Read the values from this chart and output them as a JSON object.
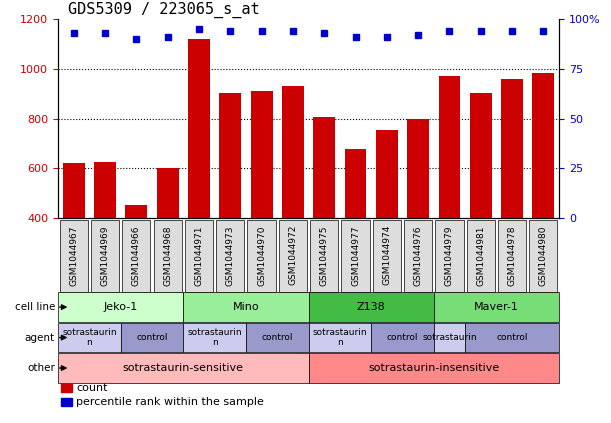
{
  "title": "GDS5309 / 223065_s_at",
  "samples": [
    "GSM1044967",
    "GSM1044969",
    "GSM1044966",
    "GSM1044968",
    "GSM1044971",
    "GSM1044973",
    "GSM1044970",
    "GSM1044972",
    "GSM1044975",
    "GSM1044977",
    "GSM1044974",
    "GSM1044976",
    "GSM1044979",
    "GSM1044981",
    "GSM1044978",
    "GSM1044980"
  ],
  "counts": [
    620,
    625,
    455,
    600,
    1120,
    905,
    910,
    930,
    805,
    680,
    755,
    800,
    970,
    905,
    960,
    985
  ],
  "percentile_ranks": [
    93,
    93,
    90,
    91,
    95,
    94,
    94,
    94,
    93,
    91,
    91,
    92,
    94,
    94,
    94,
    94
  ],
  "ylim_left": [
    400,
    1200
  ],
  "ylim_right": [
    0,
    100
  ],
  "yticks_left": [
    400,
    600,
    800,
    1000,
    1200
  ],
  "yticks_right": [
    0,
    25,
    50,
    75,
    100
  ],
  "bar_color": "#cc0000",
  "dot_color": "#0000cc",
  "cell_line_row": {
    "label": "cell line",
    "groups": [
      {
        "text": "Jeko-1",
        "start": 0,
        "end": 4,
        "color": "#ccffcc"
      },
      {
        "text": "Mino",
        "start": 4,
        "end": 8,
        "color": "#99ee99"
      },
      {
        "text": "Z138",
        "start": 8,
        "end": 12,
        "color": "#44bb44"
      },
      {
        "text": "Maver-1",
        "start": 12,
        "end": 16,
        "color": "#77dd77"
      }
    ]
  },
  "agent_row": {
    "label": "agent",
    "groups": [
      {
        "text": "sotrastaurin\nn",
        "start": 0,
        "end": 2,
        "color": "#ccccee"
      },
      {
        "text": "control",
        "start": 2,
        "end": 4,
        "color": "#9999cc"
      },
      {
        "text": "sotrastaurin\nn",
        "start": 4,
        "end": 6,
        "color": "#ccccee"
      },
      {
        "text": "control",
        "start": 6,
        "end": 8,
        "color": "#9999cc"
      },
      {
        "text": "sotrastaurin\nn",
        "start": 8,
        "end": 10,
        "color": "#ccccee"
      },
      {
        "text": "control",
        "start": 10,
        "end": 12,
        "color": "#9999cc"
      },
      {
        "text": "sotrastaurin",
        "start": 12,
        "end": 13,
        "color": "#ccccee"
      },
      {
        "text": "control",
        "start": 13,
        "end": 16,
        "color": "#9999cc"
      }
    ]
  },
  "other_row": {
    "label": "other",
    "groups": [
      {
        "text": "sotrastaurin-sensitive",
        "start": 0,
        "end": 8,
        "color": "#ffbbbb"
      },
      {
        "text": "sotrastaurin-insensitive",
        "start": 8,
        "end": 16,
        "color": "#ff8888"
      }
    ]
  },
  "legend_items": [
    {
      "color": "#cc0000",
      "label": "count"
    },
    {
      "color": "#0000cc",
      "label": "percentile rank within the sample"
    }
  ],
  "tick_color_left": "#cc0000",
  "tick_color_right": "#0000cc",
  "title_fontsize": 11,
  "sample_label_fontsize": 6.5,
  "row_label_fontsize": 7.5,
  "row_text_fontsize": 7.5,
  "legend_fontsize": 8
}
